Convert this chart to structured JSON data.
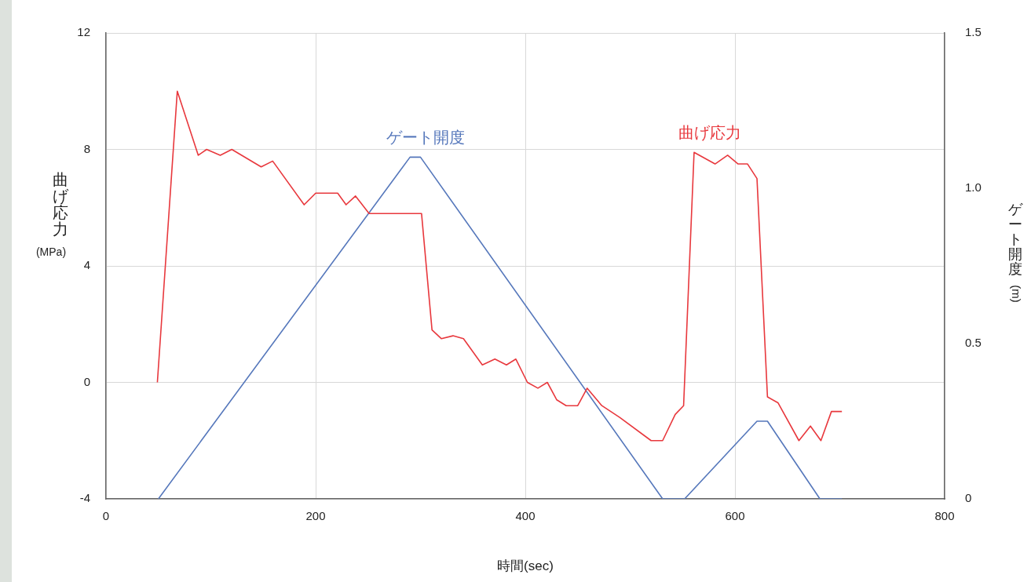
{
  "chart_data": {
    "type": "line",
    "xlabel": "時間(sec)",
    "ylabel": "曲げ応力(MPa)",
    "y2label": "ゲート開度(m)",
    "xlim": [
      0,
      800
    ],
    "xticks": [
      0,
      200,
      400,
      600,
      800
    ],
    "ylim": [
      -4,
      12
    ],
    "yticks": [
      -4,
      0,
      4,
      8,
      12
    ],
    "y2lim": [
      0,
      1.5
    ],
    "y2ticks": [
      {
        "value": 0,
        "label": "0"
      },
      0.5,
      {
        "value": 1,
        "label": "1.0"
      },
      1.5
    ],
    "grid": true,
    "series": [
      {
        "name": "曲げ応力",
        "color": "#e8383d",
        "axis": "y",
        "x": [
          49,
          68,
          88,
          96,
          109,
          120,
          148,
          159,
          189,
          200,
          221,
          229,
          238,
          251,
          301,
          311,
          320,
          331,
          341,
          359,
          371,
          382,
          391,
          402,
          412,
          421,
          430,
          439,
          450,
          459,
          473,
          490,
          520,
          531,
          543,
          551,
          561,
          581,
          593,
          603,
          612,
          621,
          631,
          641,
          661,
          672,
          682,
          692,
          702
        ],
        "values": [
          0,
          10,
          7.8,
          8,
          7.8,
          8,
          7.4,
          7.6,
          6.1,
          6.5,
          6.5,
          6.1,
          6.4,
          5.8,
          5.8,
          1.8,
          1.5,
          1.6,
          1.5,
          0.6,
          0.8,
          0.6,
          0.8,
          0,
          -0.2,
          0,
          -0.6,
          -0.8,
          -0.8,
          -0.2,
          -0.8,
          -1.2,
          -2,
          -2,
          -1.1,
          -0.8,
          7.9,
          7.5,
          7.8,
          7.5,
          7.5,
          7,
          -0.5,
          -0.7,
          -2,
          -1.5,
          -2,
          -1,
          -1
        ]
      },
      {
        "name": "ゲート開度",
        "color": "#5577bb",
        "axis": "y2",
        "x": [
          50,
          290,
          300,
          531,
          552,
          621,
          631,
          681,
          702
        ],
        "values": [
          0,
          1.1,
          1.1,
          0,
          0,
          0.25,
          0.25,
          0,
          0
        ]
      }
    ]
  }
}
